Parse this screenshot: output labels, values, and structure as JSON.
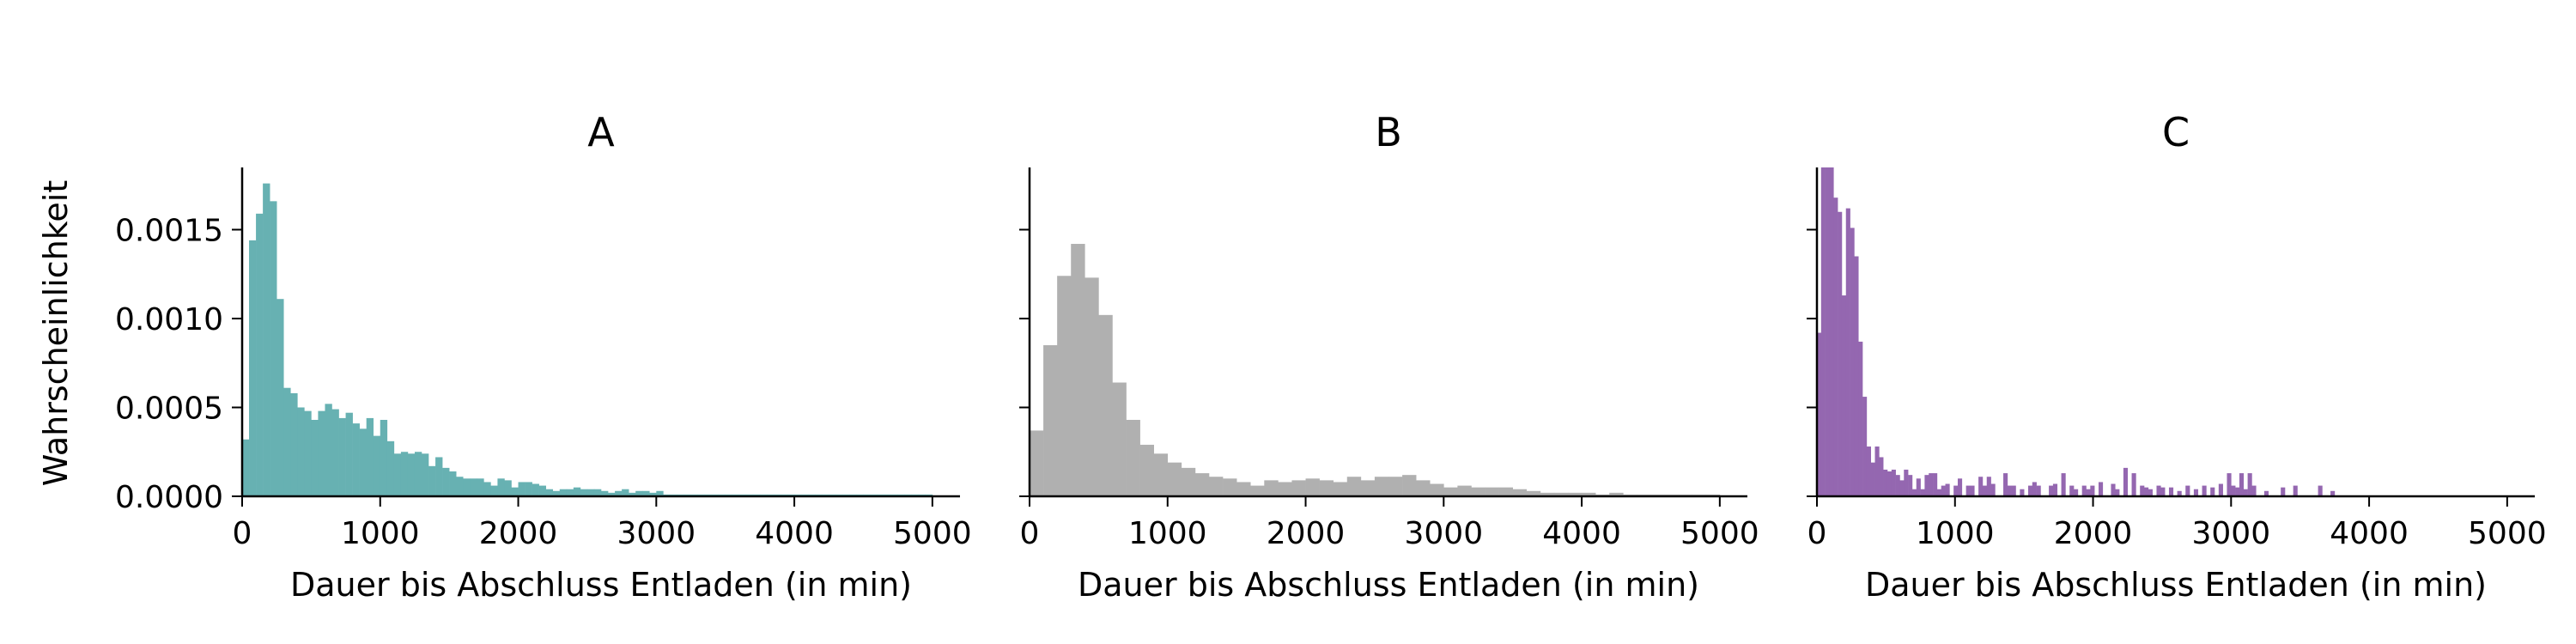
{
  "figure": {
    "ylabel": "Wahrscheinlichkeit"
  },
  "chart_data": [
    {
      "type": "bar",
      "title": "A",
      "color": "#67b1b2",
      "xlabel": "Dauer bis Abschluss Entladen (in min)",
      "ylabel": "Wahrscheinlichkeit",
      "xlim": [
        0,
        5200
      ],
      "ylim": [
        0,
        0.00185
      ],
      "xticks": [
        "0",
        "1000",
        "2000",
        "3000",
        "4000",
        "5000"
      ],
      "yticks": [
        "0.0000",
        "0.0005",
        "0.0010",
        "0.0015"
      ],
      "bin_width": 50,
      "bin_start": 0,
      "values": [
        0.00032,
        0.00144,
        0.00159,
        0.00176,
        0.00166,
        0.00111,
        0.00061,
        0.00058,
        0.0005,
        0.00048,
        0.00043,
        0.00048,
        0.00052,
        0.00049,
        0.00044,
        0.00047,
        0.00041,
        0.00038,
        0.00044,
        0.00034,
        0.00043,
        0.00031,
        0.00024,
        0.00025,
        0.00024,
        0.00025,
        0.00024,
        0.00017,
        0.00022,
        0.00016,
        0.00014,
        0.00011,
        0.0001,
        0.0001,
        0.0001,
        8e-05,
        6e-05,
        0.0001,
        9e-05,
        5e-05,
        8e-05,
        8e-05,
        7e-05,
        6e-05,
        4e-05,
        3e-05,
        4e-05,
        4e-05,
        5e-05,
        4e-05,
        4e-05,
        4e-05,
        3e-05,
        2e-05,
        3e-05,
        4e-05,
        2e-05,
        3e-05,
        3e-05,
        2e-05,
        3e-05,
        1e-05,
        1e-05,
        1e-05,
        1e-05,
        1e-05,
        1e-05,
        1e-05,
        1e-05,
        1e-05,
        1e-05,
        1e-05,
        1e-05,
        1e-05,
        1e-05,
        1e-05,
        1e-05,
        1e-05,
        1e-05,
        1e-05,
        1e-05,
        1e-05,
        1e-05,
        1e-05,
        1e-05,
        1e-05,
        1e-05,
        1e-05,
        1e-05,
        1e-05,
        1e-05,
        1e-05,
        1e-05,
        1e-05,
        1e-05,
        1e-05,
        1e-05,
        1e-05,
        1e-05,
        1e-05
      ]
    },
    {
      "type": "bar",
      "title": "B",
      "color": "#b0b0b0",
      "xlabel": "Dauer bis Abschluss Entladen (in min)",
      "ylabel": "",
      "xlim": [
        0,
        5200
      ],
      "ylim": [
        0,
        0.00185
      ],
      "xticks": [
        "0",
        "1000",
        "2000",
        "3000",
        "4000",
        "5000"
      ],
      "yticks": [
        "",
        "",
        "",
        ""
      ],
      "bin_width": 100,
      "bin_start": 0,
      "values": [
        0.00037,
        0.00085,
        0.00124,
        0.00142,
        0.00123,
        0.00102,
        0.00064,
        0.00043,
        0.00029,
        0.00024,
        0.00019,
        0.00016,
        0.00013,
        0.00011,
        0.0001,
        8e-05,
        6e-05,
        9e-05,
        8e-05,
        9e-05,
        0.0001,
        9e-05,
        8e-05,
        0.00011,
        9e-05,
        0.00011,
        0.00011,
        0.00012,
        9e-05,
        7e-05,
        5e-05,
        6e-05,
        5e-05,
        5e-05,
        5e-05,
        4e-05,
        3e-05,
        2e-05,
        2e-05,
        2e-05,
        2e-05,
        1e-05,
        2e-05,
        1e-05,
        1e-05,
        1e-05,
        1e-05,
        1e-05,
        1e-05,
        1e-05
      ]
    },
    {
      "type": "bar",
      "title": "C",
      "color": "#9467b0",
      "xlabel": "Dauer bis Abschluss Entladen (in min)",
      "ylabel": "",
      "xlim": [
        0,
        5200
      ],
      "ylim": [
        0,
        0.00185
      ],
      "xticks": [
        "0",
        "1000",
        "2000",
        "3000",
        "4000",
        "5000"
      ],
      "yticks": [
        "",
        "",
        "",
        ""
      ],
      "bin_width": 30,
      "bin_start": 0,
      "values": [
        0.00092,
        0.00186,
        0.00186,
        0.00186,
        0.00168,
        0.0016,
        0.00113,
        0.00162,
        0.00151,
        0.00135,
        0.00087,
        0.00056,
        0.00028,
        0.00019,
        0.00028,
        0.00022,
        0.00015,
        0.00014,
        0.00015,
        0.00012,
        9e-05,
        0.00015,
        0.00012,
        4e-05,
        0.0001,
        4e-05,
        0.00012,
        0.00013,
        0.00013,
        4e-05,
        6e-05,
        7e-05,
        0.0,
        6e-05,
        0.0001,
        0.0,
        6e-05,
        6e-05,
        0.0,
        0.00011,
        6e-05,
        0.00011,
        7e-05,
        0.0,
        0.0,
        0.00013,
        6e-05,
        6e-05,
        0.0,
        4e-05,
        0.0,
        6e-05,
        8e-05,
        6e-05,
        0.0,
        0.0,
        6e-05,
        7e-05,
        0.0,
        0.00013,
        0.0,
        6e-05,
        4e-05,
        0.0,
        6e-05,
        4e-05,
        6e-05,
        0.0,
        8e-05,
        0.0,
        0.0,
        7e-05,
        4e-05,
        0.0,
        0.00016,
        0.0,
        0.00013,
        0.0,
        6e-05,
        5e-05,
        4e-05,
        0.0,
        6e-05,
        5e-05,
        0.0,
        5e-05,
        0.0,
        3e-05,
        0.0,
        6e-05,
        0.0,
        4e-05,
        0.0,
        6e-05,
        0.0,
        5e-05,
        0.0,
        7e-05,
        0.0,
        0.00013,
        6e-05,
        5e-05,
        0.00013,
        4e-05,
        0.00013,
        6e-05,
        0.0,
        0.0,
        3e-05,
        0.0,
        0.0,
        0.0,
        5e-05,
        0.0,
        0.0,
        6e-05,
        0.0,
        0.0,
        0.0,
        0.0,
        0.0,
        6e-05,
        0.0,
        0.0,
        3e-05
      ]
    }
  ]
}
